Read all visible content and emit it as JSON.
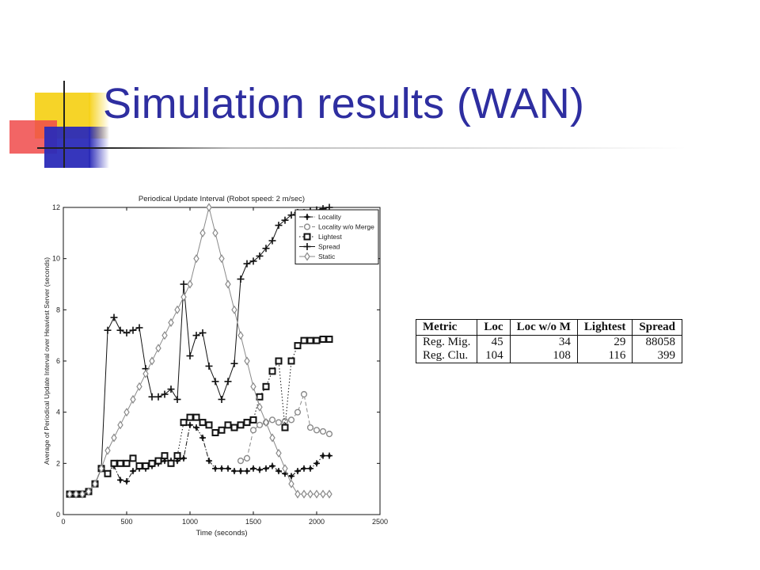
{
  "slide": {
    "title": "Simulation results (WAN)"
  },
  "table": {
    "headers": [
      "Metric",
      "Loc",
      "Loc w/o M",
      "Lightest",
      "Spread"
    ],
    "rows": [
      [
        "Reg. Mig.",
        "45",
        "34",
        "29",
        "88058"
      ],
      [
        "Reg. Clu.",
        "104",
        "108",
        "116",
        "399"
      ]
    ]
  },
  "chart_data": {
    "type": "line",
    "title": "Periodical Update Interval (Robot speed: 2 m/sec)",
    "xlabel": "Time (seconds)",
    "ylabel": "Average of Periodical Update Interval over Heaviest Server (seconds)",
    "xlim": [
      0,
      2500
    ],
    "ylim": [
      0,
      12
    ],
    "xticks": [
      0,
      500,
      1000,
      1500,
      2000,
      2500
    ],
    "yticks": [
      0,
      2,
      4,
      6,
      8,
      10,
      12
    ],
    "grid": false,
    "legend_position": "top-right",
    "series": [
      {
        "name": "Locality",
        "marker": "plus-dot",
        "line": "dash-dot",
        "x": [
          50,
          100,
          150,
          200,
          250,
          300,
          350,
          400,
          450,
          500,
          550,
          600,
          650,
          700,
          750,
          800,
          850,
          900,
          950,
          1000,
          1050,
          1100,
          1150,
          1200,
          1250,
          1300,
          1350,
          1400,
          1450,
          1500,
          1550,
          1600,
          1650,
          1700,
          1750,
          1800,
          1850,
          1900,
          1950,
          2000,
          2050,
          2100
        ],
        "y": [
          0.8,
          0.8,
          0.8,
          0.9,
          1.2,
          1.8,
          1.6,
          1.9,
          1.35,
          1.3,
          1.7,
          1.8,
          1.8,
          1.9,
          2.0,
          2.1,
          2.1,
          2.1,
          2.2,
          3.5,
          3.4,
          3.0,
          2.1,
          1.8,
          1.8,
          1.8,
          1.7,
          1.7,
          1.7,
          1.8,
          1.75,
          1.8,
          1.9,
          1.7,
          1.6,
          1.5,
          1.7,
          1.8,
          1.8,
          2.0,
          2.3,
          2.3
        ]
      },
      {
        "name": "Locality w/o Merge",
        "marker": "circle",
        "line": "dashed",
        "x": [
          1400,
          1450,
          1500,
          1550,
          1600,
          1650,
          1700,
          1750,
          1800,
          1850,
          1900,
          1950,
          2000,
          2050,
          2100
        ],
        "y": [
          2.1,
          2.2,
          3.3,
          3.5,
          3.6,
          3.7,
          3.6,
          3.65,
          3.7,
          4.0,
          4.7,
          3.4,
          3.3,
          3.25,
          3.15
        ]
      },
      {
        "name": "Lightest",
        "marker": "square",
        "line": "dotted",
        "x": [
          50,
          100,
          150,
          200,
          250,
          300,
          350,
          400,
          450,
          500,
          550,
          600,
          650,
          700,
          750,
          800,
          850,
          900,
          950,
          1000,
          1050,
          1100,
          1150,
          1200,
          1250,
          1300,
          1350,
          1400,
          1450,
          1500,
          1550,
          1600,
          1650,
          1700,
          1750,
          1800,
          1850,
          1900,
          1950,
          2000,
          2050,
          2100
        ],
        "y": [
          0.8,
          0.8,
          0.8,
          0.9,
          1.2,
          1.8,
          1.6,
          2.0,
          2.0,
          2.0,
          2.2,
          1.9,
          1.9,
          2.0,
          2.1,
          2.3,
          2.0,
          2.3,
          3.6,
          3.8,
          3.8,
          3.6,
          3.5,
          3.2,
          3.3,
          3.5,
          3.4,
          3.5,
          3.6,
          3.7,
          4.6,
          5.0,
          5.6,
          6.0,
          3.4,
          6.0,
          6.6,
          6.8,
          6.8,
          6.8,
          6.85,
          6.85
        ]
      },
      {
        "name": "Spread",
        "marker": "plus",
        "line": "solid",
        "x": [
          50,
          100,
          150,
          200,
          250,
          300,
          350,
          400,
          450,
          500,
          550,
          600,
          650,
          700,
          750,
          800,
          850,
          900,
          950,
          1000,
          1050,
          1100,
          1150,
          1200,
          1250,
          1300,
          1350,
          1400,
          1450,
          1500,
          1550,
          1600,
          1650,
          1700,
          1750,
          1800,
          1850,
          1900,
          1950,
          2000,
          2050,
          2100
        ],
        "y": [
          0.8,
          0.8,
          0.8,
          0.9,
          1.2,
          1.8,
          7.2,
          7.7,
          7.2,
          7.1,
          7.2,
          7.3,
          5.7,
          4.6,
          4.6,
          4.7,
          4.9,
          4.5,
          9.0,
          6.2,
          7.0,
          7.1,
          5.8,
          5.2,
          4.5,
          5.2,
          5.9,
          9.2,
          9.8,
          9.9,
          10.1,
          10.4,
          10.7,
          11.3,
          11.5,
          11.7,
          11.8,
          11.8,
          11.85,
          11.9,
          11.95,
          12.0
        ]
      },
      {
        "name": "Static",
        "marker": "diamond",
        "line": "solid",
        "x": [
          50,
          100,
          150,
          200,
          250,
          300,
          350,
          400,
          450,
          500,
          550,
          600,
          650,
          700,
          750,
          800,
          850,
          900,
          950,
          1000,
          1050,
          1100,
          1150,
          1200,
          1250,
          1300,
          1350,
          1400,
          1450,
          1500,
          1550,
          1600,
          1650,
          1700,
          1750,
          1800,
          1850,
          1900,
          1950,
          2000,
          2050,
          2100
        ],
        "y": [
          0.8,
          0.8,
          0.8,
          0.9,
          1.2,
          1.8,
          2.5,
          3.0,
          3.5,
          4.0,
          4.5,
          5.0,
          5.5,
          6.0,
          6.5,
          7.0,
          7.5,
          8.0,
          8.5,
          9.0,
          10.0,
          11.0,
          12.0,
          11.0,
          10.0,
          9.0,
          8.0,
          7.0,
          6.0,
          5.0,
          4.2,
          3.6,
          3.0,
          2.4,
          1.8,
          1.2,
          0.8,
          0.8,
          0.8,
          0.8,
          0.8,
          0.8
        ]
      }
    ]
  }
}
